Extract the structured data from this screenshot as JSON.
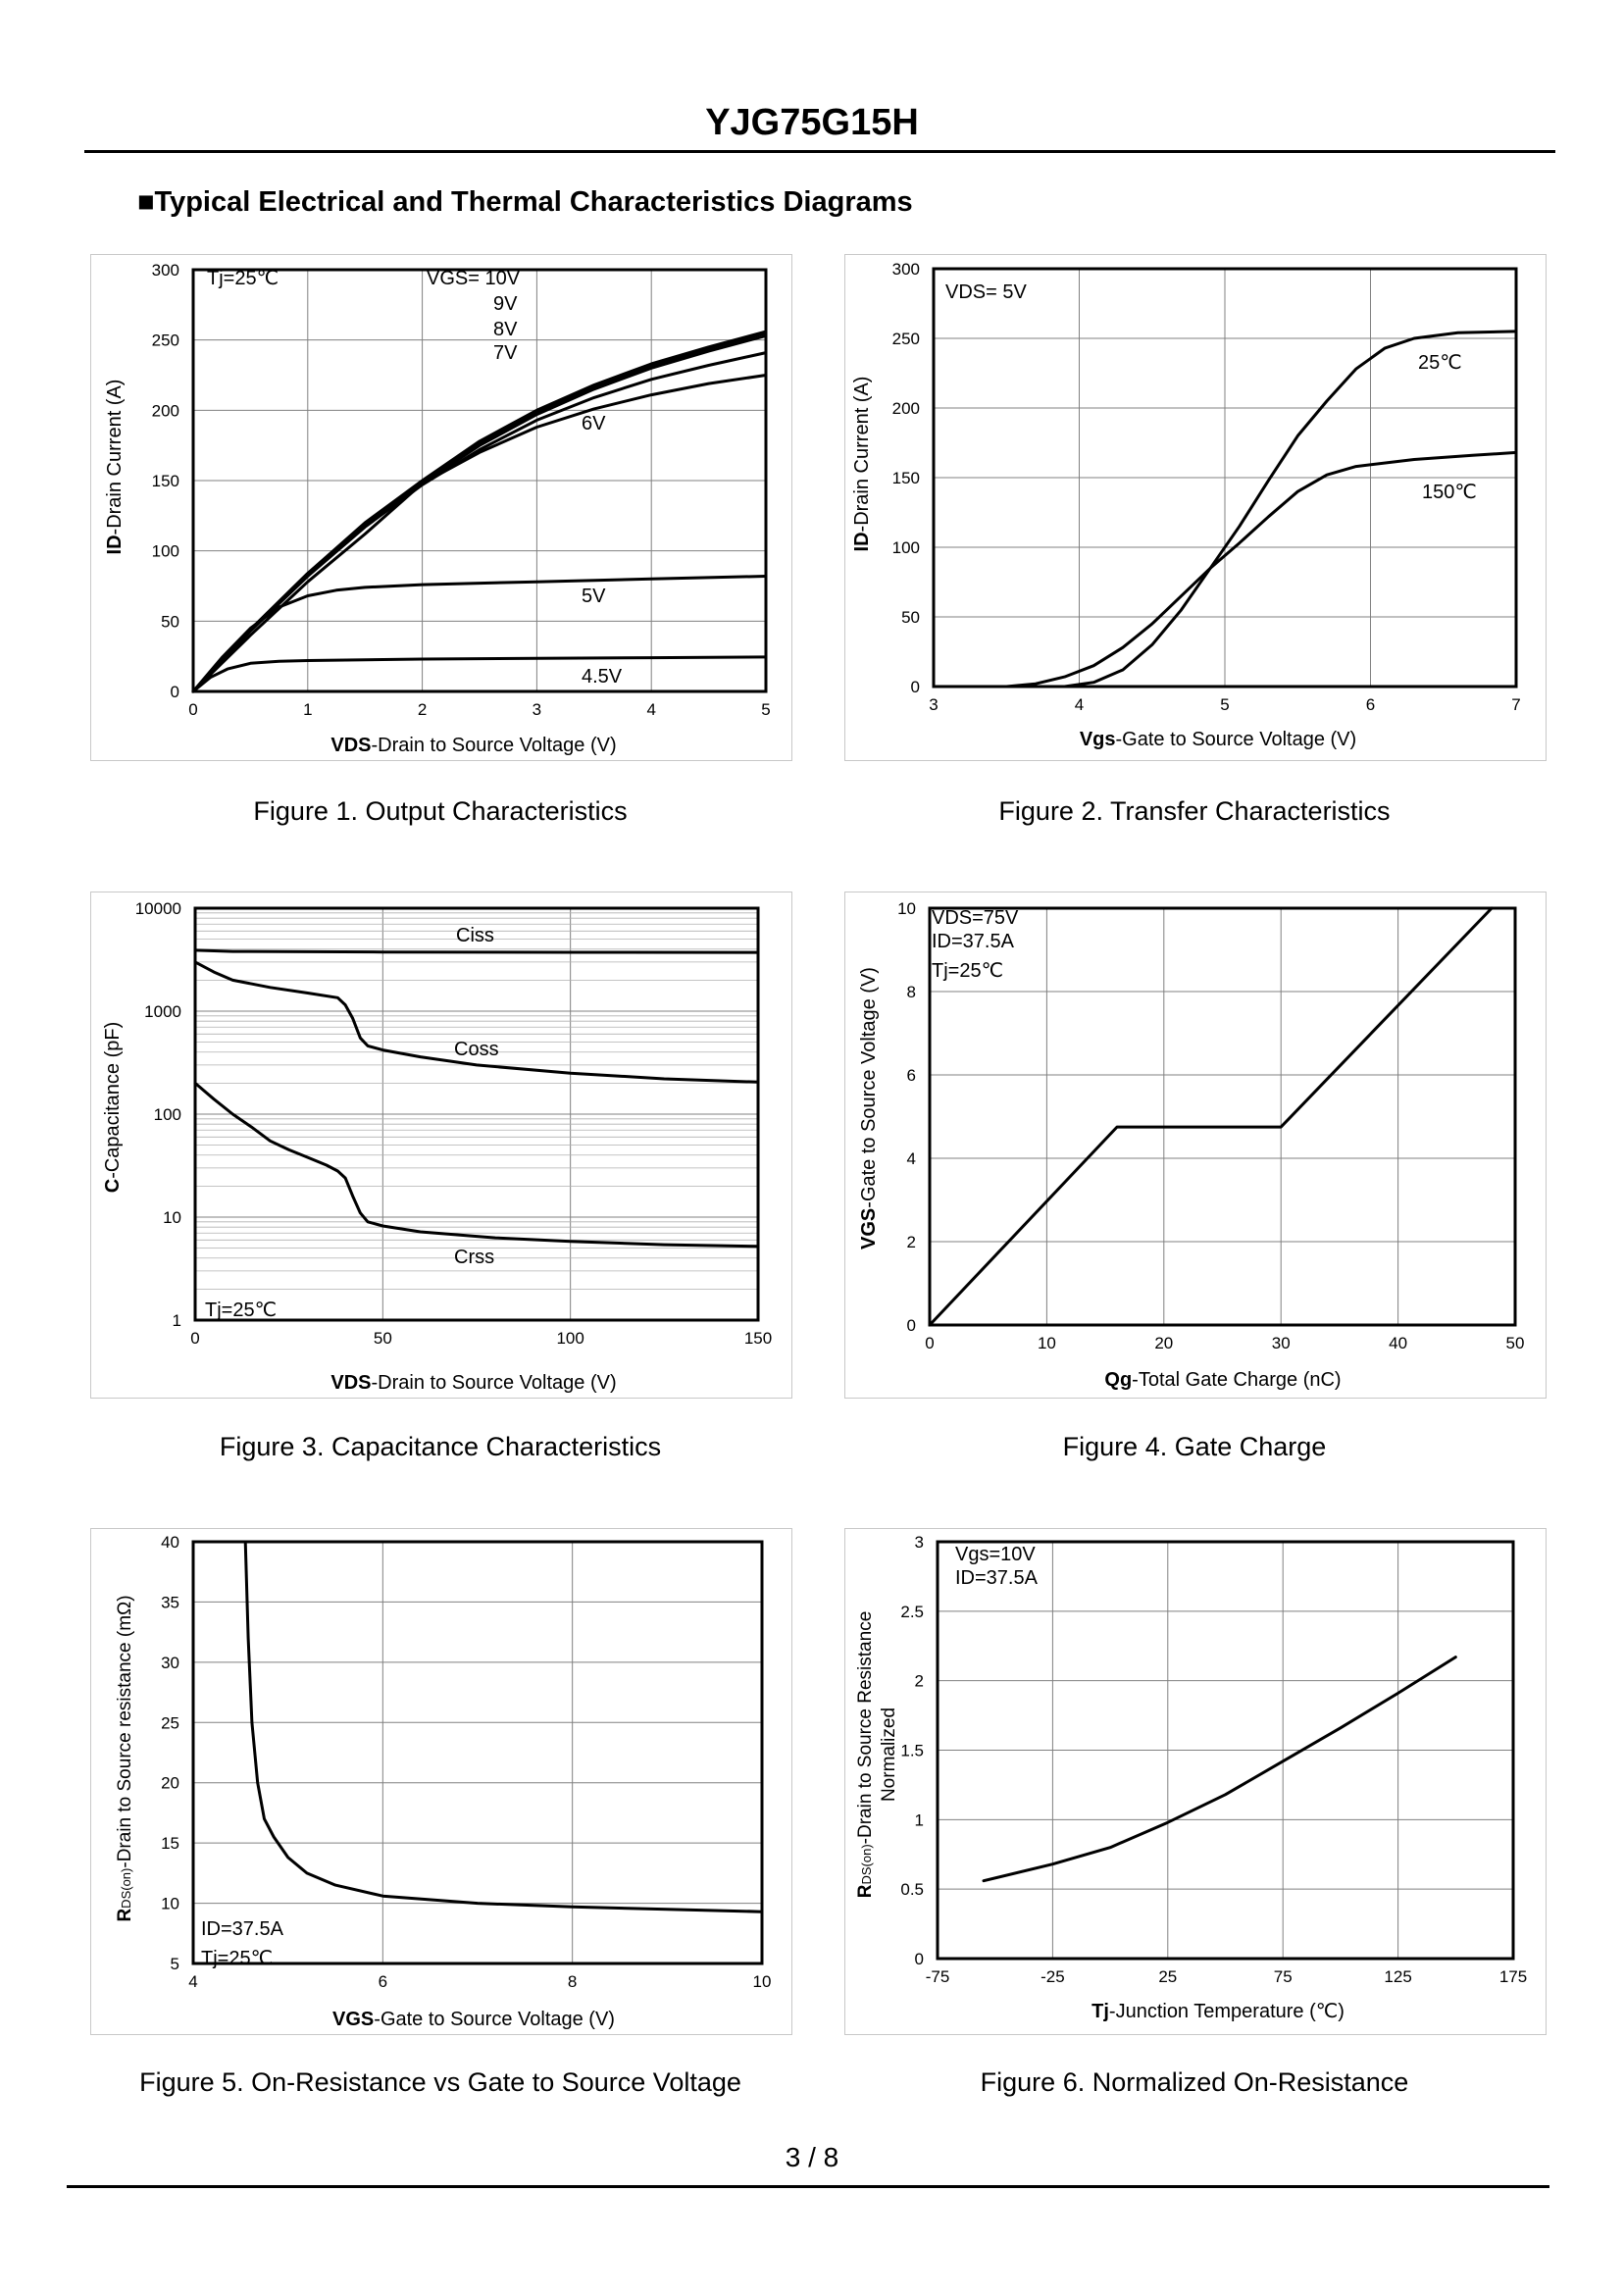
{
  "header": {
    "part_number": "YJG75G15H"
  },
  "section_title": "■Typical Electrical and Thermal Characteristics Diagrams",
  "page": {
    "number_text": "3 / 8"
  },
  "colors": {
    "curve": "#000000",
    "grid": "#808080",
    "frame": "#c8c8c8"
  },
  "figures": [
    {
      "caption": "Figure 1.  Output Characteristics",
      "xlabel_bold": "VDS",
      "xlabel_rest": "-Drain to Source Voltage (V)",
      "ylabel_bold": "ID",
      "ylabel_rest": "-Drain Current (A)",
      "annotations": [
        "Tj=25℃",
        "VGS= 10V",
        "9V",
        "8V",
        "7V",
        "6V",
        "5V",
        "4.5V"
      ]
    },
    {
      "caption": "Figure 2.  Transfer Characteristics",
      "xlabel_bold": "Vgs",
      "xlabel_rest": "-Gate to Source Voltage (V)",
      "ylabel_bold": "ID",
      "ylabel_rest": "-Drain Current (A)",
      "annotations": [
        "VDS= 5V",
        "25℃",
        "150℃"
      ]
    },
    {
      "caption": "Figure 3.  Capacitance Characteristics",
      "xlabel_bold": "VDS",
      "xlabel_rest": "-Drain to Source Voltage (V)",
      "ylabel_bold": "C",
      "ylabel_rest": "-Capacitance (pF)",
      "annotations": [
        "Ciss",
        "Coss",
        "Crss",
        "Tj=25℃"
      ]
    },
    {
      "caption": "Figure 4.  Gate Charge",
      "xlabel_bold": "Qg",
      "xlabel_rest": "-Total Gate Charge (nC)",
      "ylabel_bold": "VGS",
      "ylabel_rest": "-Gate to Source Voltage (V)",
      "annotations": [
        "VDS=75V",
        "ID=37.5A",
        "Tj=25℃"
      ]
    },
    {
      "caption": "Figure 5.  On-Resistance vs Gate to Source Voltage",
      "xlabel_bold": "VGS",
      "xlabel_rest": "-Gate to Source Voltage (V)",
      "ylabel_bold": "R",
      "ylabel_sub": "DS(on)",
      "ylabel_rest": "-Drain to Source resistance (mΩ)",
      "annotations": [
        "ID=37.5A",
        "Tj=25℃"
      ]
    },
    {
      "caption": "Figure 6.  Normalized On-Resistance",
      "xlabel_bold": "Tj",
      "xlabel_rest": "-Junction  Temperature (℃)",
      "ylabel_bold": "R",
      "ylabel_sub": "DS(on)",
      "ylabel_rest": "-Drain to Source Resistance",
      "ylabel_line2": "Normalized",
      "annotations": [
        "Vgs=10V",
        "ID=37.5A"
      ]
    }
  ],
  "chart_data": [
    {
      "type": "line",
      "title": "Output Characteristics",
      "xlabel": "VDS-Drain to Source Voltage (V)",
      "ylabel": "ID-Drain Current (A)",
      "xlim": [
        0,
        5
      ],
      "ylim": [
        0,
        300
      ],
      "xticks": [
        0,
        1,
        2,
        3,
        4,
        5
      ],
      "yticks": [
        0,
        50,
        100,
        150,
        200,
        250,
        300
      ],
      "series": [
        {
          "name": "VGS=10V",
          "x": [
            0,
            0.25,
            0.5,
            1,
            1.5,
            2,
            2.5,
            3,
            3.5,
            4,
            4.5,
            5
          ],
          "y": [
            0,
            22,
            44,
            84,
            120,
            150,
            178,
            200,
            218,
            233,
            245,
            256
          ]
        },
        {
          "name": "9V",
          "x": [
            0,
            0.25,
            0.5,
            1,
            1.5,
            2,
            2.5,
            3,
            3.5,
            4,
            4.5,
            5
          ],
          "y": [
            0,
            22,
            44,
            84,
            119,
            149,
            177,
            199,
            217,
            232,
            244,
            255
          ]
        },
        {
          "name": "8V",
          "x": [
            0,
            0.25,
            0.5,
            1,
            1.5,
            2,
            2.5,
            3,
            3.5,
            4,
            4.5,
            5
          ],
          "y": [
            0,
            22,
            44,
            83,
            118,
            148,
            175,
            197,
            215,
            230,
            242,
            253
          ]
        },
        {
          "name": "7V",
          "x": [
            0,
            0.25,
            0.5,
            1,
            1.5,
            2,
            2.5,
            3,
            3.5,
            4,
            4.5,
            5
          ],
          "y": [
            0,
            21,
            43,
            82,
            117,
            147,
            172,
            193,
            209,
            222,
            232,
            241
          ]
        },
        {
          "name": "6V",
          "x": [
            0,
            0.25,
            0.5,
            1,
            1.5,
            2,
            2.5,
            3,
            3.5,
            4,
            4.5,
            5
          ],
          "y": [
            0,
            20,
            40,
            78,
            112,
            148,
            170,
            188,
            201,
            211,
            219,
            225
          ]
        },
        {
          "name": "5V",
          "x": [
            0,
            0.25,
            0.5,
            0.75,
            1,
            1.25,
            1.5,
            2,
            3,
            4,
            5
          ],
          "y": [
            0,
            24,
            45,
            60,
            68,
            72,
            74,
            76,
            78,
            80,
            82
          ]
        },
        {
          "name": "4.5V",
          "x": [
            0,
            0.15,
            0.3,
            0.5,
            0.75,
            1,
            2,
            3,
            4,
            5
          ],
          "y": [
            0,
            10,
            16,
            20,
            21.5,
            22,
            23,
            23.5,
            24,
            24.5
          ]
        }
      ]
    },
    {
      "type": "line",
      "title": "Transfer Characteristics",
      "xlabel": "Vgs-Gate to Source Voltage (V)",
      "ylabel": "ID-Drain Current (A)",
      "xlim": [
        3,
        7
      ],
      "ylim": [
        0,
        300
      ],
      "xticks": [
        3,
        4,
        5,
        6,
        7
      ],
      "yticks": [
        0,
        50,
        100,
        150,
        200,
        250,
        300
      ],
      "series": [
        {
          "name": "25℃",
          "x": [
            3.9,
            4.1,
            4.3,
            4.5,
            4.7,
            4.9,
            5.1,
            5.3,
            5.5,
            5.7,
            5.9,
            6.1,
            6.3,
            6.6,
            7.0
          ],
          "y": [
            0,
            3,
            12,
            30,
            55,
            85,
            115,
            148,
            180,
            205,
            228,
            243,
            250,
            254,
            255
          ]
        },
        {
          "name": "150℃",
          "x": [
            3.5,
            3.7,
            3.9,
            4.1,
            4.3,
            4.5,
            4.7,
            4.9,
            5.1,
            5.3,
            5.5,
            5.7,
            5.9,
            6.3,
            6.7,
            7.0
          ],
          "y": [
            0,
            2,
            7,
            15,
            28,
            45,
            65,
            85,
            103,
            122,
            140,
            152,
            158,
            163,
            166,
            168
          ]
        }
      ]
    },
    {
      "type": "line",
      "title": "Capacitance Characteristics",
      "yscale": "log",
      "xlabel": "VDS-Drain to Source Voltage (V)",
      "ylabel": "C-Capacitance (pF)",
      "xlim": [
        0,
        150
      ],
      "ylim": [
        1,
        10000
      ],
      "xticks": [
        0,
        50,
        100,
        150
      ],
      "yticks": [
        1,
        10,
        100,
        1000,
        10000
      ],
      "series": [
        {
          "name": "Ciss",
          "x": [
            0,
            10,
            50,
            100,
            150
          ],
          "y": [
            3900,
            3800,
            3750,
            3730,
            3720
          ]
        },
        {
          "name": "Coss",
          "x": [
            0,
            5,
            10,
            20,
            30,
            38,
            40,
            42,
            44,
            46,
            50,
            60,
            75,
            100,
            125,
            150
          ],
          "y": [
            3000,
            2400,
            2000,
            1700,
            1500,
            1350,
            1150,
            850,
            550,
            460,
            420,
            360,
            300,
            250,
            220,
            205
          ]
        },
        {
          "name": "Crss",
          "x": [
            0,
            5,
            10,
            15,
            20,
            25,
            30,
            35,
            38,
            40,
            42,
            44,
            46,
            50,
            60,
            80,
            100,
            125,
            150
          ],
          "y": [
            200,
            140,
            100,
            75,
            55,
            45,
            38,
            32,
            28,
            24,
            16,
            11,
            9,
            8.2,
            7.2,
            6.3,
            5.8,
            5.4,
            5.2
          ]
        }
      ]
    },
    {
      "type": "line",
      "title": "Gate Charge",
      "xlabel": "Qg-Total Gate Charge (nC)",
      "ylabel": "VGS-Gate to Source Voltage (V)",
      "xlim": [
        0,
        50
      ],
      "ylim": [
        0,
        10
      ],
      "xticks": [
        0,
        10,
        20,
        30,
        40,
        50
      ],
      "yticks": [
        0,
        2,
        4,
        6,
        8,
        10
      ],
      "series": [
        {
          "name": "VGS",
          "x": [
            0,
            16,
            30,
            48
          ],
          "y": [
            0,
            4.75,
            4.75,
            10
          ]
        }
      ]
    },
    {
      "type": "line",
      "title": "On-Resistance vs Gate to Source Voltage",
      "xlabel": "VGS-Gate to Source Voltage (V)",
      "ylabel": "RDS(on)-Drain to Source resistance (mΩ)",
      "xlim": [
        4,
        10
      ],
      "ylim": [
        5,
        40
      ],
      "xticks": [
        4,
        6,
        8,
        10
      ],
      "yticks": [
        5,
        10,
        15,
        20,
        25,
        30,
        35,
        40
      ],
      "series": [
        {
          "name": "RDS(on)",
          "x": [
            4.55,
            4.58,
            4.62,
            4.68,
            4.75,
            4.85,
            5.0,
            5.2,
            5.5,
            6,
            7,
            8,
            9,
            10
          ],
          "y": [
            40,
            32,
            25,
            20,
            17,
            15.5,
            13.8,
            12.5,
            11.5,
            10.6,
            10,
            9.7,
            9.5,
            9.3
          ]
        }
      ]
    },
    {
      "type": "line",
      "title": "Normalized On-Resistance",
      "xlabel": "Tj-Junction Temperature (℃)",
      "ylabel": "RDS(on)-Drain to Source Resistance Normalized",
      "xlim": [
        -75,
        175
      ],
      "ylim": [
        0,
        3
      ],
      "xticks": [
        -75,
        -25,
        25,
        75,
        125,
        175
      ],
      "yticks": [
        0,
        0.5,
        1,
        1.5,
        2,
        2.5,
        3
      ],
      "series": [
        {
          "name": "Normalized RDS(on)",
          "x": [
            -55,
            -25,
            0,
            25,
            50,
            75,
            100,
            125,
            150
          ],
          "y": [
            0.56,
            0.68,
            0.8,
            0.98,
            1.18,
            1.42,
            1.66,
            1.91,
            2.17
          ]
        }
      ]
    }
  ]
}
